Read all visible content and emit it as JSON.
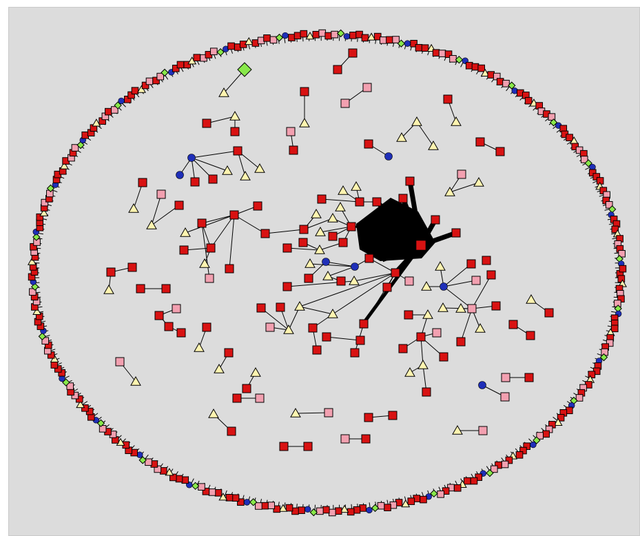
{
  "network": {
    "legend": {
      "red_square": "#d81212",
      "pink_square": "#f2a0b0",
      "yellow_triangle": "#fff4b0",
      "blue_circle": "#1f2fb8",
      "green_diamond": "#88e84a",
      "edge": "#000000",
      "background": "#dcdcdc"
    },
    "ring": {
      "cx_data": 468,
      "cy_data": 389,
      "node_types": [
        "red_square",
        "red_square",
        "pink_square",
        "red_square",
        "yellow_triangle",
        "red_square",
        "blue_circle",
        "red_square",
        "pink_square",
        "green_diamond"
      ]
    },
    "hub": {
      "type": "red_square",
      "spokes": 14
    }
  }
}
